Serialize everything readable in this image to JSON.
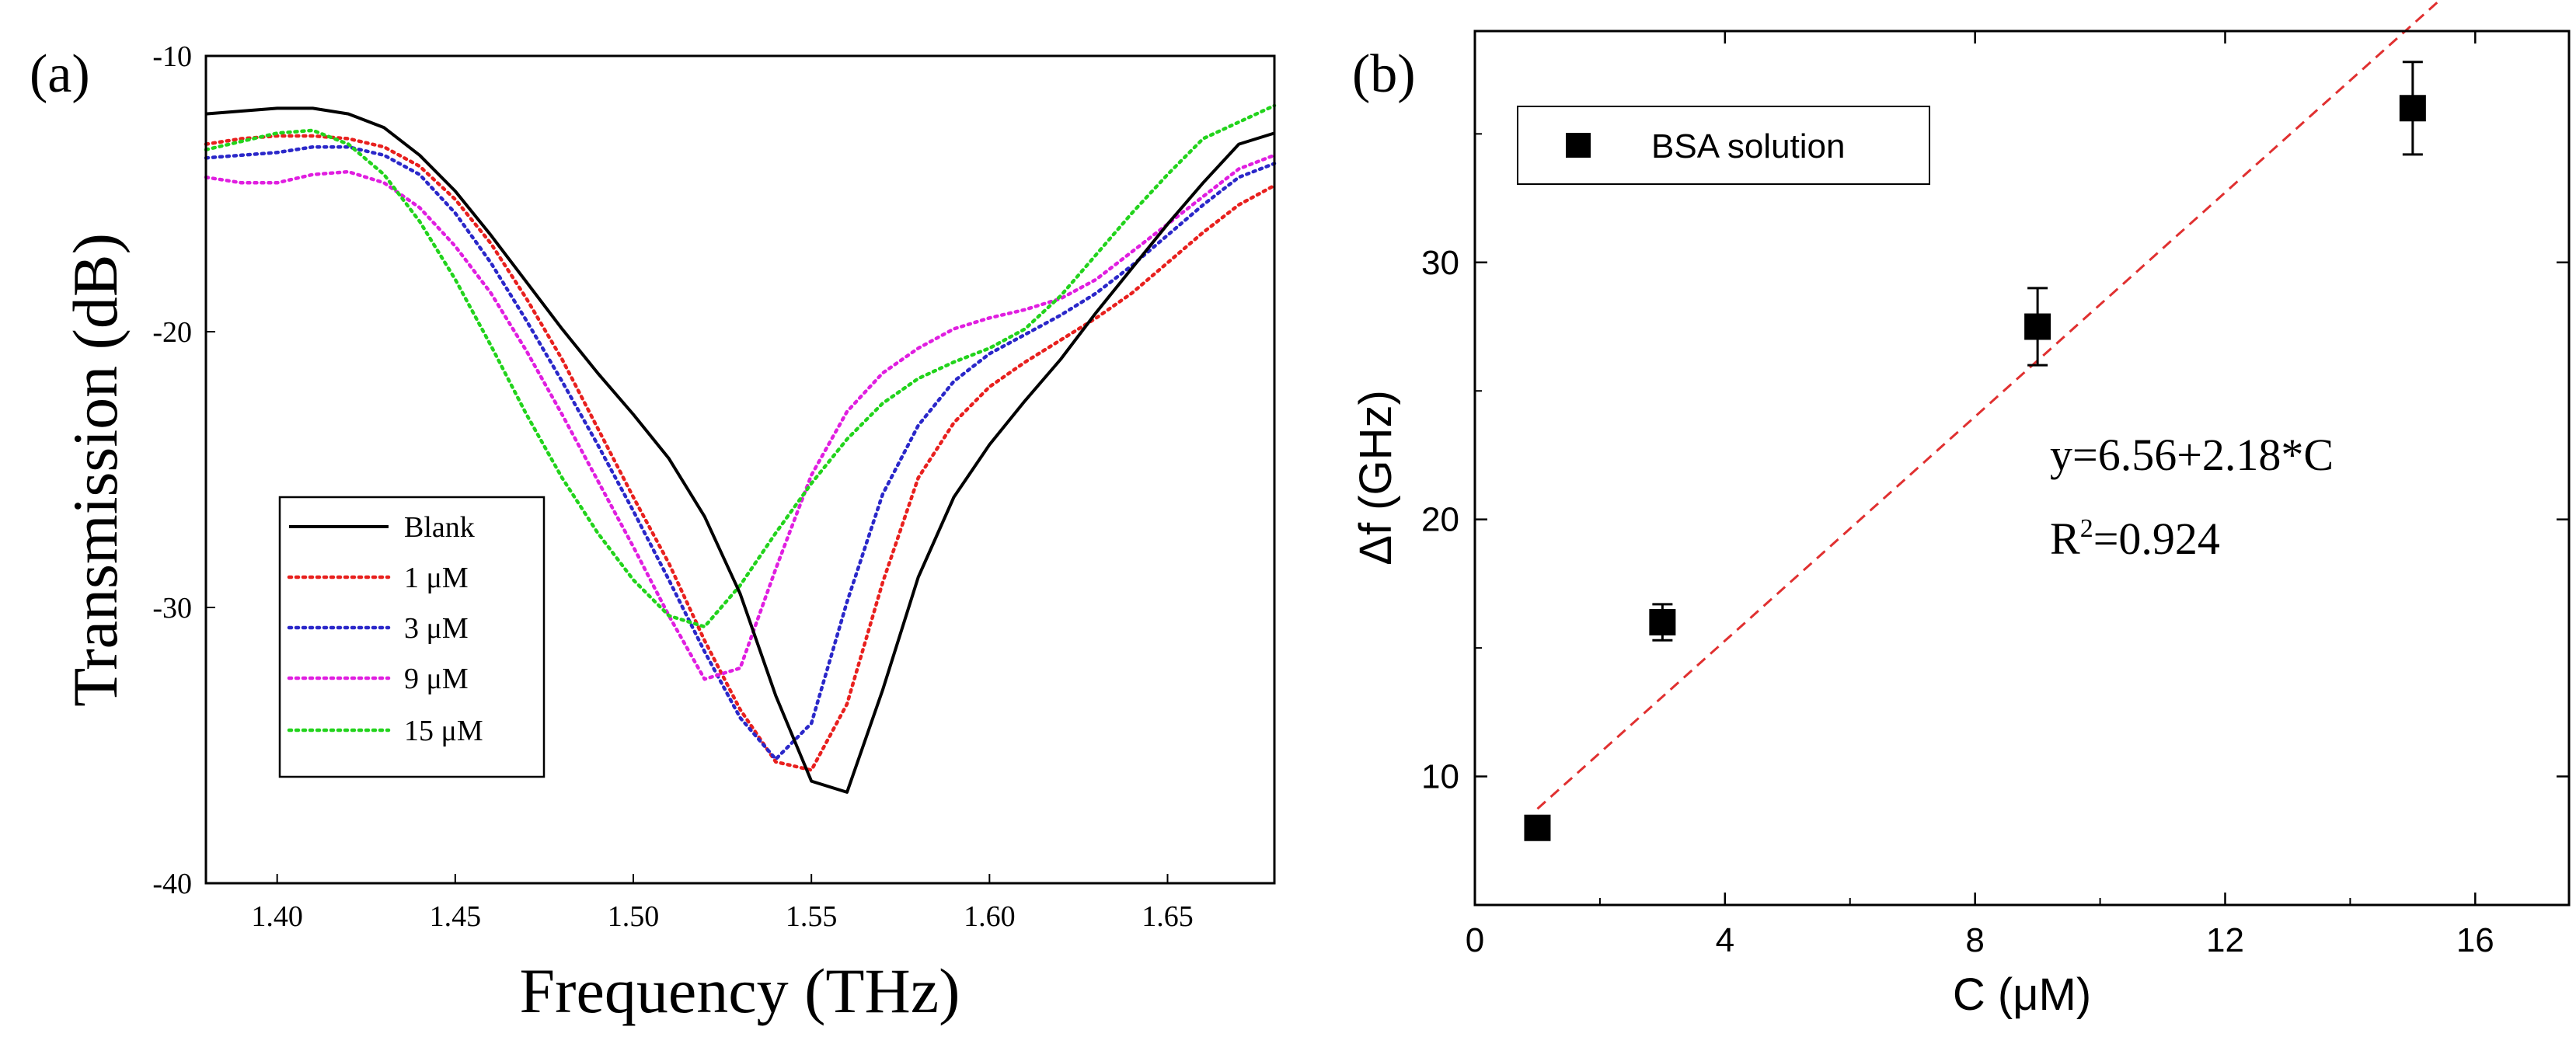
{
  "chart_data": [
    {
      "panel_label": "(a)",
      "type": "line",
      "xlabel": "Frequency (THz)",
      "ylabel": "Transmission (dB)",
      "xlim": [
        1.38,
        1.68
      ],
      "ylim": [
        -40,
        -10
      ],
      "xticks": [
        1.4,
        1.45,
        1.5,
        1.55,
        1.6,
        1.65
      ],
      "xtick_labels": [
        "1.40",
        "1.45",
        "1.50",
        "1.55",
        "1.60",
        "1.65"
      ],
      "yticks": [
        -10,
        -20,
        -30,
        -40
      ],
      "ytick_labels": [
        "-10",
        "-20",
        "-30",
        "-40"
      ],
      "legend_position": "lower-left",
      "series": [
        {
          "name": "Blank",
          "color": "#000000",
          "style": "solid",
          "x": [
            1.38,
            1.39,
            1.4,
            1.41,
            1.42,
            1.43,
            1.44,
            1.45,
            1.46,
            1.47,
            1.48,
            1.49,
            1.5,
            1.51,
            1.52,
            1.53,
            1.54,
            1.55,
            1.56,
            1.57,
            1.58,
            1.59,
            1.6,
            1.61,
            1.62,
            1.63,
            1.64,
            1.65,
            1.66,
            1.67,
            1.68
          ],
          "y": [
            -12.1,
            -12.0,
            -11.9,
            -11.9,
            -12.1,
            -12.6,
            -13.6,
            -14.9,
            -16.5,
            -18.2,
            -19.9,
            -21.5,
            -23.0,
            -24.6,
            -26.7,
            -29.5,
            -33.2,
            -36.3,
            -36.7,
            -33.0,
            -28.9,
            -26.0,
            -24.1,
            -22.5,
            -21.0,
            -19.3,
            -17.7,
            -16.1,
            -14.6,
            -13.2,
            -12.8
          ]
        },
        {
          "name": "1 μM",
          "color": "#e8201e",
          "style": "dotted",
          "x": [
            1.38,
            1.39,
            1.4,
            1.41,
            1.42,
            1.43,
            1.44,
            1.45,
            1.46,
            1.47,
            1.48,
            1.49,
            1.5,
            1.51,
            1.52,
            1.53,
            1.54,
            1.55,
            1.56,
            1.57,
            1.58,
            1.59,
            1.6,
            1.61,
            1.62,
            1.63,
            1.64,
            1.65,
            1.66,
            1.67,
            1.68
          ],
          "y": [
            -13.2,
            -13.0,
            -12.9,
            -12.9,
            -13.0,
            -13.3,
            -14.0,
            -15.2,
            -16.8,
            -18.8,
            -21.0,
            -23.5,
            -26.0,
            -28.4,
            -31.2,
            -33.7,
            -35.6,
            -35.9,
            -33.5,
            -29.1,
            -25.3,
            -23.3,
            -22.0,
            -21.1,
            -20.3,
            -19.5,
            -18.6,
            -17.5,
            -16.4,
            -15.4,
            -14.7
          ]
        },
        {
          "name": "3 μM",
          "color": "#2a27c9",
          "style": "dotted",
          "x": [
            1.38,
            1.39,
            1.4,
            1.41,
            1.42,
            1.43,
            1.44,
            1.45,
            1.46,
            1.47,
            1.48,
            1.49,
            1.5,
            1.51,
            1.52,
            1.53,
            1.54,
            1.55,
            1.56,
            1.57,
            1.58,
            1.59,
            1.6,
            1.61,
            1.62,
            1.63,
            1.64,
            1.65,
            1.66,
            1.67,
            1.68
          ],
          "y": [
            -13.7,
            -13.6,
            -13.5,
            -13.3,
            -13.3,
            -13.6,
            -14.3,
            -15.7,
            -17.5,
            -19.6,
            -21.8,
            -24.1,
            -26.5,
            -29.0,
            -31.6,
            -34.0,
            -35.5,
            -34.2,
            -29.8,
            -25.9,
            -23.4,
            -21.8,
            -20.8,
            -20.1,
            -19.4,
            -18.6,
            -17.6,
            -16.5,
            -15.4,
            -14.4,
            -13.9
          ]
        },
        {
          "name": "9 μM",
          "color": "#e01ee0",
          "style": "dotted",
          "x": [
            1.38,
            1.39,
            1.4,
            1.41,
            1.42,
            1.43,
            1.44,
            1.45,
            1.46,
            1.47,
            1.48,
            1.49,
            1.5,
            1.51,
            1.52,
            1.53,
            1.54,
            1.55,
            1.56,
            1.57,
            1.58,
            1.59,
            1.6,
            1.61,
            1.62,
            1.63,
            1.64,
            1.65,
            1.66,
            1.67,
            1.68
          ],
          "y": [
            -14.4,
            -14.6,
            -14.6,
            -14.3,
            -14.2,
            -14.6,
            -15.5,
            -16.9,
            -18.6,
            -20.7,
            -23.0,
            -25.4,
            -27.8,
            -30.3,
            -32.6,
            -32.2,
            -28.6,
            -25.2,
            -22.9,
            -21.5,
            -20.6,
            -19.9,
            -19.5,
            -19.2,
            -18.8,
            -18.1,
            -17.1,
            -16.1,
            -15.1,
            -14.1,
            -13.6
          ]
        },
        {
          "name": "15 μM",
          "color": "#22d31c",
          "style": "dotted",
          "x": [
            1.38,
            1.39,
            1.4,
            1.41,
            1.42,
            1.43,
            1.44,
            1.45,
            1.46,
            1.47,
            1.48,
            1.49,
            1.5,
            1.51,
            1.52,
            1.53,
            1.54,
            1.55,
            1.56,
            1.57,
            1.58,
            1.59,
            1.6,
            1.61,
            1.62,
            1.63,
            1.64,
            1.65,
            1.66,
            1.67,
            1.68
          ],
          "y": [
            -13.4,
            -13.1,
            -12.8,
            -12.7,
            -13.2,
            -14.3,
            -16.0,
            -18.1,
            -20.5,
            -23.0,
            -25.3,
            -27.3,
            -29.0,
            -30.3,
            -30.7,
            -29.2,
            -27.3,
            -25.5,
            -23.9,
            -22.6,
            -21.7,
            -21.1,
            -20.6,
            -19.9,
            -18.7,
            -17.2,
            -15.7,
            -14.3,
            -13.0,
            -12.4,
            -11.8
          ]
        }
      ]
    },
    {
      "panel_label": "(b)",
      "type": "scatter",
      "xlabel": "C (μM)",
      "ylabel": "Δf (GHz)",
      "xlim": [
        0,
        17.5
      ],
      "ylim": [
        5,
        39
      ],
      "xticks": [
        0,
        4,
        8,
        12,
        16
      ],
      "xtick_labels": [
        "0",
        "4",
        "8",
        "12",
        "16"
      ],
      "yticks": [
        10,
        20,
        30
      ],
      "ytick_labels": [
        "10",
        "20",
        "30"
      ],
      "legend_position": "top-left",
      "series": [
        {
          "name": "BSA solution",
          "color": "#000000",
          "marker": "square",
          "x": [
            1,
            3,
            9,
            15
          ],
          "y": [
            8.0,
            16.0,
            27.5,
            36.0
          ],
          "error": [
            0.4,
            0.7,
            1.5,
            1.8
          ]
        }
      ],
      "fit": {
        "intercept": 6.56,
        "slope": 2.18,
        "x_range": [
          1,
          16.7
        ],
        "color": "#e03030",
        "style": "dashed"
      },
      "annotations": [
        "y=6.56+2.18*C",
        "R",
        "2",
        "=0.924"
      ]
    }
  ]
}
